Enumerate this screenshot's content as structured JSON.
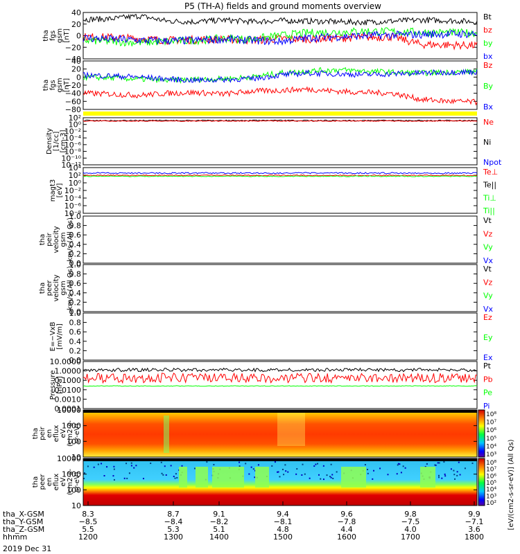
{
  "title": "P5 (TH-A) fields and ground moments overview",
  "date_label": "2019 Dec 31",
  "colors": {
    "black": "#000000",
    "red": "#ff0000",
    "green": "#00ff00",
    "blue": "#0000ff",
    "yellow": "#ffff00",
    "axis": "#000000"
  },
  "panels": [
    {
      "id": "fgs",
      "ylabel": [
        "tha",
        "fgs",
        "gsm",
        "[nT]"
      ],
      "ticks": [
        "40",
        "20",
        "0",
        "−20",
        "−40"
      ],
      "legend": [
        {
          "text": "Bt",
          "color": "black"
        },
        {
          "text": "bz",
          "color": "red"
        },
        {
          "text": "by",
          "color": "green"
        },
        {
          "text": "bx",
          "color": "blue"
        }
      ]
    },
    {
      "id": "fgs_dsl",
      "ylabel": [
        "tha",
        "fgs",
        "gsm",
        "[nT]"
      ],
      "ticks": [
        "40",
        "20",
        "0",
        "−20",
        "−40",
        "−60",
        "−80"
      ],
      "legend": [
        {
          "text": "Bz",
          "color": "red"
        },
        {
          "text": "By",
          "color": "green"
        },
        {
          "text": "Bx",
          "color": "blue"
        }
      ]
    },
    {
      "id": "density",
      "ylabel": [
        "Density",
        "[1/cc]",
        "[cm-3]"
      ],
      "ticks": [
        "10²",
        "10⁰",
        "10⁻²",
        "10⁻⁴",
        "10⁻⁶",
        "10⁻⁸",
        "10⁻¹⁰",
        "10⁻¹²"
      ],
      "legend": [
        {
          "text": "Ne",
          "color": "red"
        },
        {
          "text": "Ni",
          "color": "black"
        },
        {
          "text": "Npot",
          "color": "blue"
        }
      ]
    },
    {
      "id": "temp",
      "ylabel": [
        "magt3",
        "[eV]"
      ],
      "ticks": [
        "10⁴",
        "10²",
        "10⁰",
        "10⁻²",
        "10⁻⁴",
        "10⁻⁶",
        "10⁻⁸"
      ],
      "legend": [
        {
          "text": "Te⊥",
          "color": "red"
        },
        {
          "text": "Te||",
          "color": "black"
        },
        {
          "text": "Ti⊥",
          "color": "green"
        },
        {
          "text": "Ti||",
          "color": "green"
        }
      ]
    },
    {
      "id": "peir_vel",
      "ylabel": [
        "tha",
        "peir",
        "velocity",
        "gsm",
        "km/s (All Qs)"
      ],
      "ticks": [
        "1.0",
        "0.8",
        "0.6",
        "0.4",
        "0.2",
        "0.0"
      ],
      "legend": [
        {
          "text": "Vt",
          "color": "black"
        },
        {
          "text": "Vz",
          "color": "red"
        },
        {
          "text": "Vy",
          "color": "green"
        },
        {
          "text": "Vx",
          "color": "blue"
        }
      ]
    },
    {
      "id": "peer_vel",
      "ylabel": [
        "tha",
        "peer",
        "velocity",
        "gsm",
        "km/s (All Qs)"
      ],
      "ticks": [
        "1.0",
        "0.8",
        "0.6",
        "0.4",
        "0.2",
        "0.0"
      ],
      "legend": [
        {
          "text": "Vt",
          "color": "black"
        },
        {
          "text": "Vz",
          "color": "red"
        },
        {
          "text": "Vy",
          "color": "green"
        },
        {
          "text": "Vx",
          "color": "blue"
        }
      ]
    },
    {
      "id": "efield",
      "ylabel": [
        "E=−VxB",
        "[mV/m]"
      ],
      "ticks": [
        "1.0",
        "0.8",
        "0.6",
        "0.4",
        "0.2",
        "0.0"
      ],
      "legend": [
        {
          "text": "Ez",
          "color": "red"
        },
        {
          "text": "Ey",
          "color": "green"
        },
        {
          "text": "Ex",
          "color": "blue"
        }
      ]
    },
    {
      "id": "pressure",
      "ylabel": [
        "Pressure",
        "[nPa]"
      ],
      "ticks": [
        "10.0000",
        "1.0000",
        "0.1000",
        "0.0100",
        "0.0010",
        "0.0001"
      ],
      "legend": [
        {
          "text": "Pt",
          "color": "black"
        },
        {
          "text": "Pb",
          "color": "red"
        },
        {
          "text": "Pe",
          "color": "green"
        },
        {
          "text": "Pi",
          "color": "blue"
        }
      ]
    },
    {
      "id": "peir_spec",
      "ylabel": [
        "tha",
        "peir",
        "en",
        "eflux",
        "eV",
        "(cm2-s-",
        "sr-eV)"
      ],
      "ticks": [
        "10000",
        "1000",
        "100",
        "10"
      ],
      "colorbar_ticks": [
        "10⁸",
        "10⁷",
        "10⁶",
        "10⁵",
        "10⁴",
        "10³"
      ]
    },
    {
      "id": "peer_spec",
      "ylabel": [
        "tha",
        "peer",
        "en",
        "eflux",
        "eV",
        "(cm2-s-",
        "sr-eV)"
      ],
      "ticks": [
        "10000",
        "1000",
        "100",
        "10"
      ],
      "colorbar_ticks": [
        "10⁸",
        "10⁷",
        "10⁶",
        "10⁵",
        "10⁴",
        "10³",
        "10²"
      ]
    }
  ],
  "colorbar_label": "[eV/(cm2-s-sr-eV)] (All Qs)",
  "xaxis": {
    "rows": [
      {
        "label": "tha_X-GSM",
        "values": [
          "8.3",
          "8.7",
          "9.1",
          "9.4",
          "9.6",
          "9.8",
          "9.9"
        ]
      },
      {
        "label": "tha_Y-GSM",
        "values": [
          "−8.5",
          "−8.4",
          "−8.2",
          "−8.1",
          "−7.8",
          "−7.5",
          "−7.1"
        ]
      },
      {
        "label": "tha_Z-GSM",
        "values": [
          "5.5",
          "5.3",
          "5.1",
          "4.8",
          "4.4",
          "4.0",
          "3.6"
        ]
      },
      {
        "label": "hhmm",
        "values": [
          "1200",
          "1300",
          "1400",
          "1500",
          "1600",
          "1700",
          "1800"
        ]
      }
    ]
  },
  "chart_data": {
    "type": "line",
    "title": "P5 (TH-A) fields and ground moments overview",
    "x_label": "hhmm",
    "x_range": [
      "1200",
      "1800"
    ],
    "x_ticks": [
      "1200",
      "1300",
      "1400",
      "1500",
      "1600",
      "1700",
      "1800"
    ],
    "series": [
      {
        "name": "Bt",
        "panel": "fgs",
        "values": [
          28,
          29,
          34,
          25,
          24,
          27,
          24,
          26,
          25,
          24,
          23,
          25,
          27,
          26,
          24
        ]
      },
      {
        "name": "bz",
        "panel": "fgs",
        "values": [
          -2,
          -3,
          -5,
          -8,
          -7,
          -6,
          -8,
          -5,
          -6,
          -4,
          -3,
          -2,
          -15,
          -16,
          -17
        ]
      },
      {
        "name": "by",
        "panel": "fgs",
        "values": [
          -8,
          -10,
          -12,
          -10,
          -8,
          -5,
          -6,
          0,
          5,
          6,
          8,
          7,
          6,
          5,
          5
        ]
      },
      {
        "name": "bx",
        "panel": "fgs",
        "values": [
          -4,
          -6,
          -8,
          -9,
          -8,
          -6,
          -8,
          -10,
          -4,
          -2,
          0,
          1,
          2,
          3,
          3
        ]
      },
      {
        "name": "Bz",
        "panel": "fgs_dsl",
        "values": [
          -40,
          -42,
          -45,
          -40,
          -38,
          -42,
          -35,
          -33,
          -30,
          -35,
          -38,
          -40,
          -55,
          -60,
          -62
        ]
      },
      {
        "name": "By",
        "panel": "fgs_dsl",
        "values": [
          0,
          -2,
          -5,
          -8,
          -6,
          -4,
          0,
          10,
          15,
          18,
          15,
          12,
          10,
          12,
          14
        ]
      },
      {
        "name": "Bx",
        "panel": "fgs_dsl",
        "values": [
          5,
          3,
          0,
          -5,
          -8,
          -6,
          -4,
          5,
          10,
          8,
          6,
          8,
          10,
          12,
          13
        ]
      }
    ]
  }
}
